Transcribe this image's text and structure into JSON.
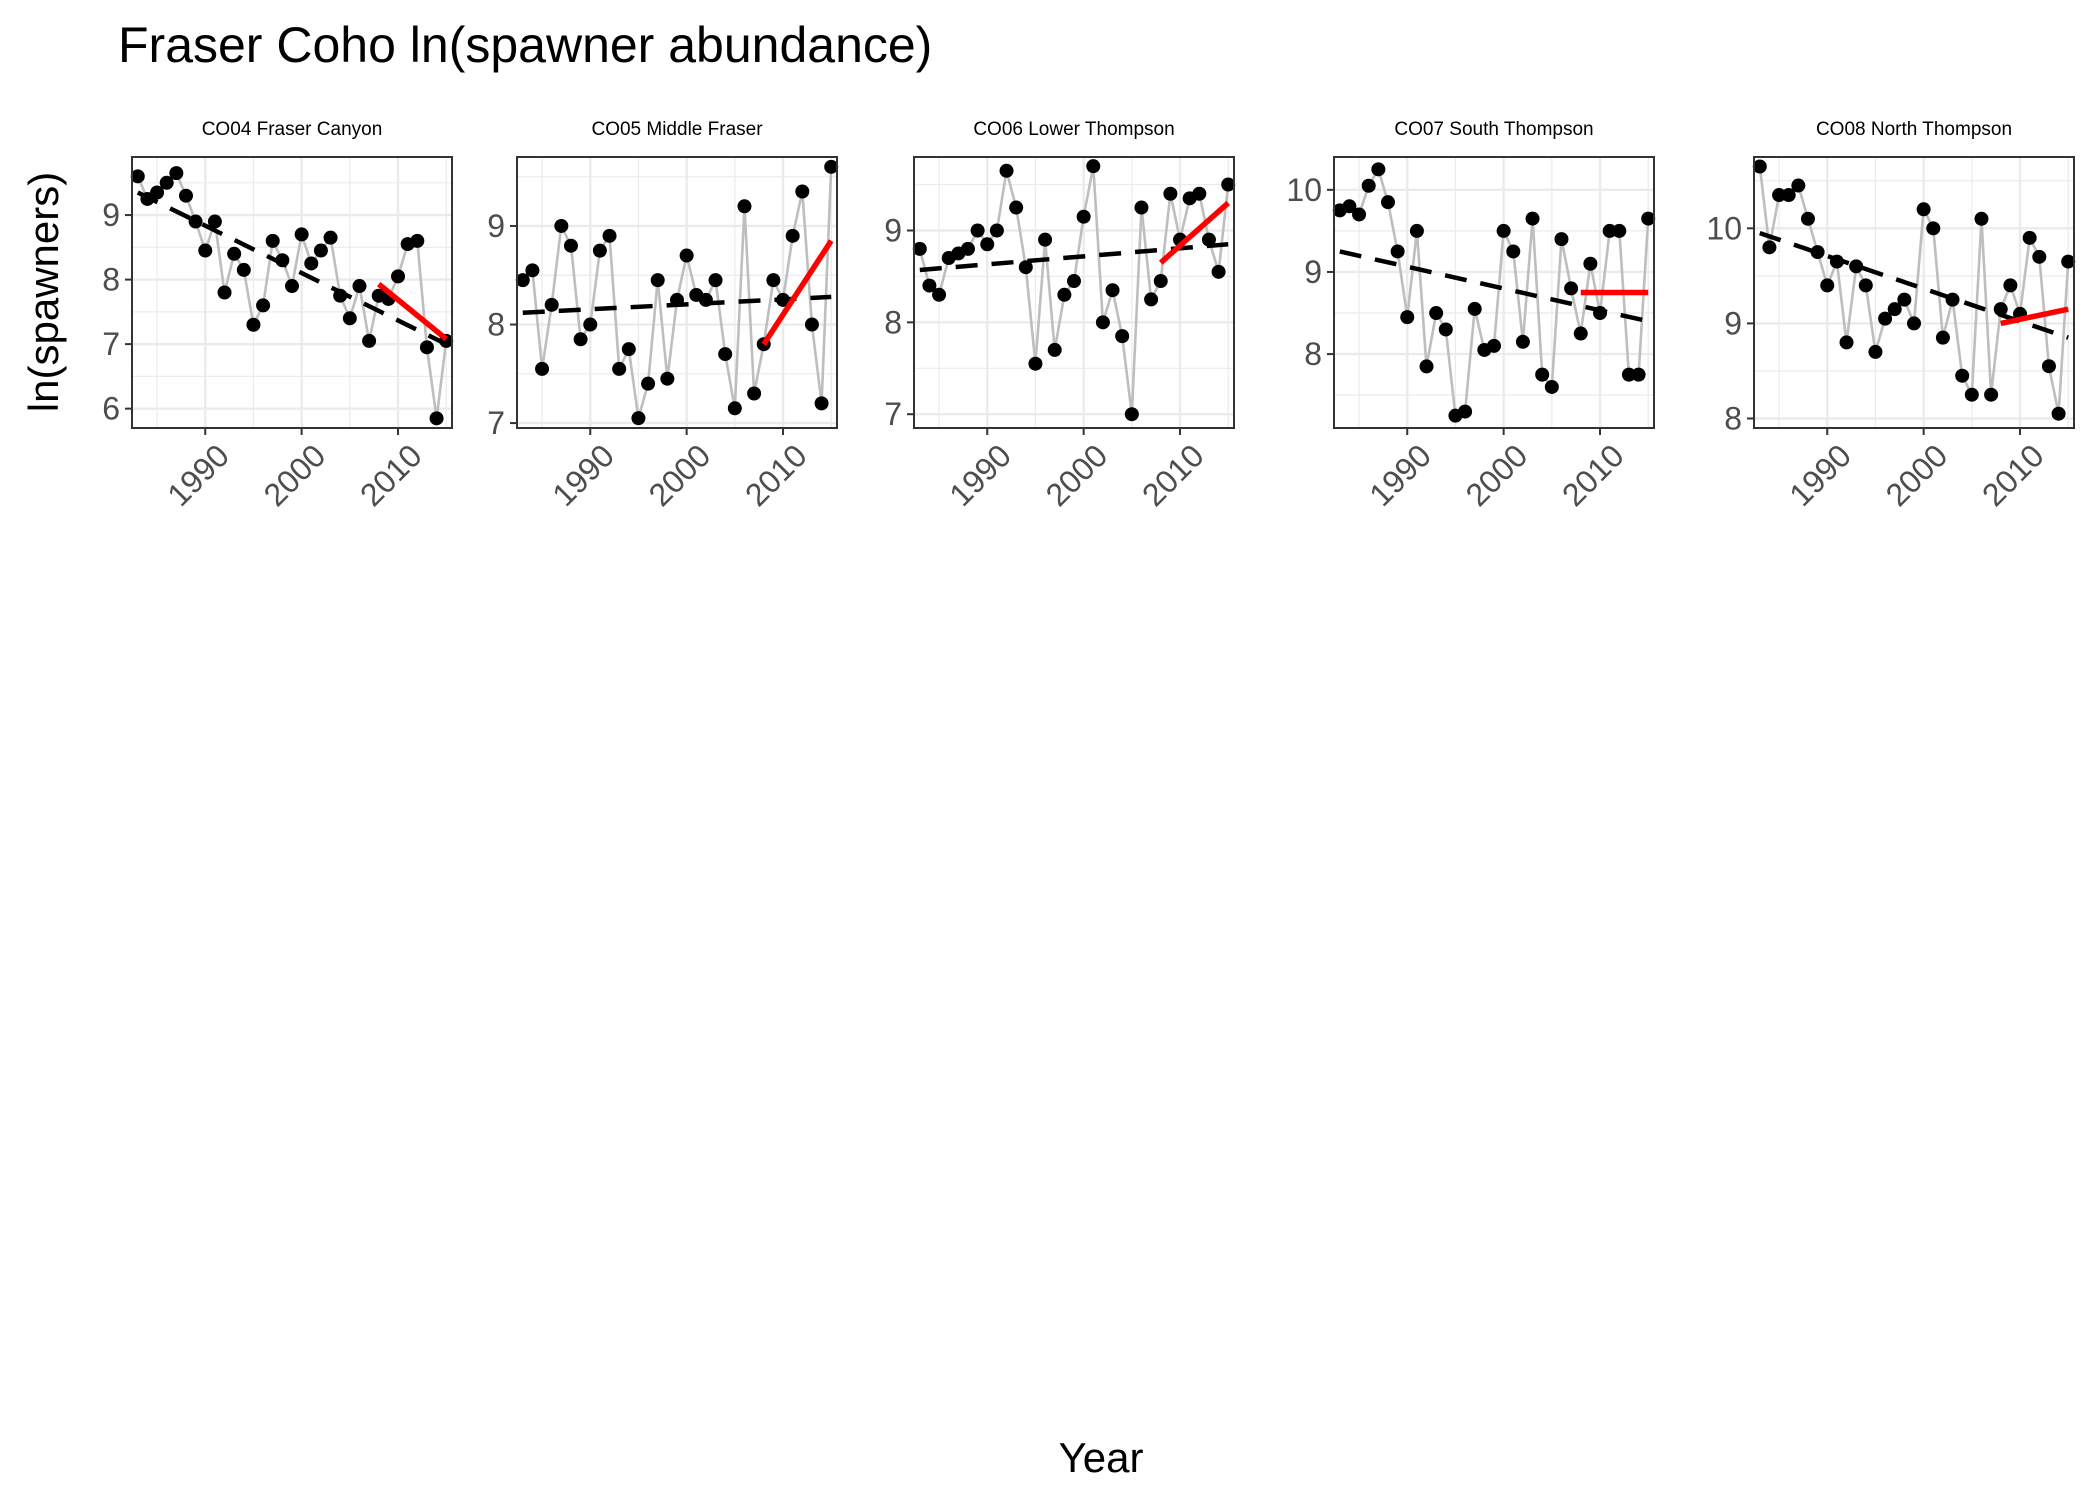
{
  "title": "Fraser Coho ln(spawner abundance)",
  "xlabel": "Year",
  "ylabel": "ln(spawners)",
  "colors": {
    "points": "#000000",
    "connector": "#bebebe",
    "longterm_trend": "#000000",
    "recent_trend": "#ff0000",
    "grid": "#ebebeb",
    "panel_border": "#333333"
  },
  "chart_data": [
    {
      "type": "scatter",
      "title": "CO04 Fraser Canyon",
      "xticks": [
        1990,
        2000,
        2010
      ],
      "xlim": [
        1982.4,
        2015.6
      ],
      "yticks": [
        6,
        7,
        8,
        9
      ],
      "ylim": [
        5.7,
        9.9
      ],
      "x": [
        1983,
        1984,
        1985,
        1986,
        1987,
        1988,
        1989,
        1990,
        1991,
        1992,
        1993,
        1994,
        1995,
        1996,
        1997,
        1998,
        1999,
        2000,
        2001,
        2002,
        2003,
        2004,
        2005,
        2006,
        2007,
        2008,
        2009,
        2010,
        2011,
        2012,
        2013,
        2014,
        2015
      ],
      "series": [
        {
          "values": [
            9.6,
            9.25,
            9.35,
            9.5,
            9.65,
            9.3,
            8.9,
            8.45,
            8.9,
            7.8,
            8.4,
            8.15,
            7.3,
            7.6,
            8.6,
            8.3,
            7.9,
            8.7,
            8.25,
            8.45,
            8.65,
            7.75,
            7.4,
            7.9,
            7.05,
            7.75,
            7.7,
            8.05,
            8.55,
            8.6,
            6.95,
            5.85,
            7.05
          ]
        }
      ],
      "longterm_trend": {
        "x": [
          1983,
          2015
        ],
        "y": [
          9.35,
          7.0
        ]
      },
      "recent_trend": {
        "x": [
          2008,
          2015
        ],
        "y": [
          7.93,
          7.08
        ]
      },
      "grid": true
    },
    {
      "type": "scatter",
      "title": "CO05 Middle Fraser",
      "xticks": [
        1990,
        2000,
        2010
      ],
      "xlim": [
        1982.4,
        2015.6
      ],
      "yticks": [
        7,
        8,
        9
      ],
      "ylim": [
        6.95,
        9.7
      ],
      "x": [
        1983,
        1984,
        1985,
        1986,
        1987,
        1988,
        1989,
        1990,
        1991,
        1992,
        1993,
        1994,
        1995,
        1996,
        1997,
        1998,
        1999,
        2000,
        2001,
        2002,
        2003,
        2004,
        2005,
        2006,
        2007,
        2008,
        2009,
        2010,
        2011,
        2012,
        2013,
        2014,
        2015
      ],
      "series": [
        {
          "values": [
            8.45,
            8.55,
            7.55,
            8.2,
            9.0,
            8.8,
            7.85,
            8.0,
            8.75,
            8.9,
            7.55,
            7.75,
            7.05,
            7.4,
            8.45,
            7.45,
            8.25,
            8.7,
            8.3,
            8.25,
            8.45,
            7.7,
            7.15,
            9.2,
            7.3,
            7.8,
            8.45,
            8.25,
            8.9,
            9.35,
            8.0,
            7.2,
            9.6
          ]
        }
      ],
      "longterm_trend": {
        "x": [
          1983,
          2015
        ],
        "y": [
          8.12,
          8.28
        ]
      },
      "recent_trend": {
        "x": [
          2008,
          2015
        ],
        "y": [
          7.8,
          8.85
        ]
      },
      "grid": true
    },
    {
      "type": "scatter",
      "title": "CO06 Lower Thompson",
      "xticks": [
        1990,
        2000,
        2010
      ],
      "xlim": [
        1982.4,
        2015.6
      ],
      "yticks": [
        7,
        8,
        9
      ],
      "ylim": [
        6.85,
        9.8
      ],
      "x": [
        1983,
        1984,
        1985,
        1986,
        1987,
        1988,
        1989,
        1990,
        1991,
        1992,
        1993,
        1994,
        1995,
        1996,
        1997,
        1998,
        1999,
        2000,
        2001,
        2002,
        2003,
        2004,
        2005,
        2006,
        2007,
        2008,
        2009,
        2010,
        2011,
        2012,
        2013,
        2014,
        2015
      ],
      "series": [
        {
          "values": [
            8.8,
            8.4,
            8.3,
            8.7,
            8.75,
            8.8,
            9.0,
            8.85,
            9.0,
            9.65,
            9.25,
            8.6,
            7.55,
            8.9,
            7.7,
            8.3,
            8.45,
            9.15,
            9.7,
            8.0,
            8.35,
            7.85,
            7.0,
            9.25,
            8.25,
            8.45,
            9.4,
            8.9,
            9.35,
            9.4,
            8.9,
            8.55,
            9.5
          ]
        }
      ],
      "longterm_trend": {
        "x": [
          1983,
          2015
        ],
        "y": [
          8.57,
          8.85
        ]
      },
      "recent_trend": {
        "x": [
          2008,
          2015
        ],
        "y": [
          8.65,
          9.3
        ]
      },
      "grid": true
    },
    {
      "type": "scatter",
      "title": "CO07 South Thompson",
      "xticks": [
        1990,
        2000,
        2010
      ],
      "xlim": [
        1982.4,
        2015.6
      ],
      "yticks": [
        8,
        9,
        10
      ],
      "ylim": [
        7.1,
        10.4
      ],
      "x": [
        1983,
        1984,
        1985,
        1986,
        1987,
        1988,
        1989,
        1990,
        1991,
        1992,
        1993,
        1994,
        1995,
        1996,
        1997,
        1998,
        1999,
        2000,
        2001,
        2002,
        2003,
        2004,
        2005,
        2006,
        2007,
        2008,
        2009,
        2010,
        2011,
        2012,
        2013,
        2014,
        2015
      ],
      "series": [
        {
          "values": [
            9.75,
            9.8,
            9.7,
            10.05,
            10.25,
            9.85,
            9.25,
            8.45,
            9.5,
            7.85,
            8.5,
            8.3,
            7.25,
            7.3,
            8.55,
            8.05,
            8.1,
            9.5,
            9.25,
            8.15,
            9.65,
            7.75,
            7.6,
            9.4,
            8.8,
            8.25,
            9.1,
            8.5,
            9.5,
            9.5,
            7.75,
            7.75,
            9.65
          ]
        }
      ],
      "longterm_trend": {
        "x": [
          1983,
          2015
        ],
        "y": [
          9.25,
          8.4
        ]
      },
      "recent_trend": {
        "x": [
          2008,
          2015
        ],
        "y": [
          8.75,
          8.75
        ]
      },
      "grid": true
    },
    {
      "type": "scatter",
      "title": "CO08 North Thompson",
      "xticks": [
        1990,
        2000,
        2010
      ],
      "xlim": [
        1982.4,
        2015.6
      ],
      "yticks": [
        8,
        9,
        10
      ],
      "ylim": [
        7.9,
        10.75
      ],
      "x": [
        1983,
        1984,
        1985,
        1986,
        1987,
        1988,
        1989,
        1990,
        1991,
        1992,
        1993,
        1994,
        1995,
        1996,
        1997,
        1998,
        1999,
        2000,
        2001,
        2002,
        2003,
        2004,
        2005,
        2006,
        2007,
        2008,
        2009,
        2010,
        2011,
        2012,
        2013,
        2014,
        2015
      ],
      "series": [
        {
          "values": [
            10.65,
            9.8,
            10.35,
            10.35,
            10.45,
            10.1,
            9.75,
            9.4,
            9.65,
            8.8,
            9.6,
            9.4,
            8.7,
            9.05,
            9.15,
            9.25,
            9.0,
            10.2,
            10.0,
            8.85,
            9.25,
            8.45,
            8.25,
            10.1,
            8.25,
            9.15,
            9.4,
            9.1,
            9.9,
            9.7,
            8.55,
            8.05,
            9.65
          ]
        }
      ],
      "longterm_trend": {
        "x": [
          1983,
          2015
        ],
        "y": [
          9.95,
          8.85
        ]
      },
      "recent_trend": {
        "x": [
          2008,
          2015
        ],
        "y": [
          9.0,
          9.15
        ]
      },
      "grid": true
    }
  ]
}
